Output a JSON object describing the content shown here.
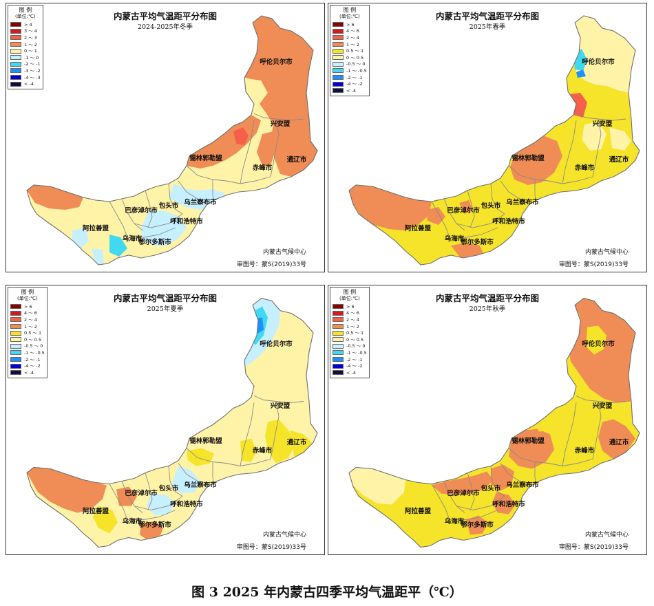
{
  "caption": "图 3   2025 年内蒙古四季平均气温距平（℃）",
  "colors": {
    "border": "#8a8a8a",
    "land_base": "#fff3a8"
  },
  "panels": [
    {
      "id": "winter",
      "title": "内蒙古平均气温距平分布图",
      "subtitle": "2024-2025年冬季",
      "org": "内蒙古气候中心",
      "approval": "审图号：蒙S(2019)33号",
      "legend": {
        "title": "图 例",
        "unit": "(单位:℃)",
        "items": [
          {
            "label": "> 4",
            "color": "#8b0000"
          },
          {
            "label": "3 ～ 4",
            "color": "#d7191c"
          },
          {
            "label": "2 ～ 3",
            "color": "#f4604a"
          },
          {
            "label": "1 ～ 2",
            "color": "#f08c55"
          },
          {
            "label": "0 ～ 1",
            "color": "#fff3a8"
          },
          {
            "label": "-1 ～ 0",
            "color": "#c6efff"
          },
          {
            "label": "-2 ～ -1",
            "color": "#40d9f0"
          },
          {
            "label": "-3 ～ -2",
            "color": "#1e90ff"
          },
          {
            "label": "-4 ～ -3",
            "color": "#0000d0"
          },
          {
            "label": "< -4",
            "color": "#101040"
          }
        ]
      },
      "cities": [
        "呼伦贝尔市",
        "兴安盟",
        "通辽市",
        "赤峰市",
        "锡林郭勒盟",
        "乌兰察布市",
        "包头市",
        "巴彦淖尔市",
        "呼和浩特市",
        "阿拉善盟",
        "乌海市",
        "鄂尔多斯市"
      ]
    },
    {
      "id": "spring",
      "title": "内蒙古平均气温距平分布图",
      "subtitle": "2025年春季",
      "org": "内蒙古气候中心",
      "approval": "审图号：蒙S(2019)33号",
      "legend": {
        "title": "图 例",
        "unit": "(单位:℃)",
        "items": [
          {
            "label": "> 6",
            "color": "#8b0000"
          },
          {
            "label": "4 ～ 6",
            "color": "#d7191c"
          },
          {
            "label": "2 ～ 4",
            "color": "#f4604a"
          },
          {
            "label": "1 ～ 2",
            "color": "#f08c55"
          },
          {
            "label": "0.5 ～ 1",
            "color": "#f5e42a"
          },
          {
            "label": "0 ～ 0.5",
            "color": "#fff3a8"
          },
          {
            "label": "-0.5 ～ 0",
            "color": "#c6efff"
          },
          {
            "label": "-1 ～ -0.5",
            "color": "#40d9f0"
          },
          {
            "label": "-2 ～ -1",
            "color": "#1e90ff"
          },
          {
            "label": "-4 ～ -2",
            "color": "#0000d0"
          },
          {
            "label": "< -4",
            "color": "#101040"
          }
        ]
      },
      "cities": [
        "呼伦贝尔市",
        "兴安盟",
        "通辽市",
        "赤峰市",
        "锡林郭勒盟",
        "乌兰察布市",
        "包头市",
        "巴彦淖尔市",
        "呼和浩特市",
        "阿拉善盟",
        "乌海市",
        "鄂尔多斯市"
      ]
    },
    {
      "id": "summer",
      "title": "内蒙古平均气温距平分布图",
      "subtitle": "2025年夏季",
      "org": "内蒙古气候中心",
      "approval": "审图号：蒙S(2019)33号",
      "legend": {
        "title": "图 例",
        "unit": "(单位:℃)",
        "items": [
          {
            "label": "> 6",
            "color": "#8b0000"
          },
          {
            "label": "4 ～ 6",
            "color": "#d7191c"
          },
          {
            "label": "2 ～ 4",
            "color": "#f4604a"
          },
          {
            "label": "1 ～ 2",
            "color": "#f08c55"
          },
          {
            "label": "0.5 ～ 1",
            "color": "#f5e42a"
          },
          {
            "label": "0 ～ 0.5",
            "color": "#fff3a8"
          },
          {
            "label": "-0.5 ～ 0",
            "color": "#c6efff"
          },
          {
            "label": "-1 ～ -0.5",
            "color": "#40d9f0"
          },
          {
            "label": "-2 ～ -1",
            "color": "#1e90ff"
          },
          {
            "label": "-4 ～ -2",
            "color": "#0000d0"
          },
          {
            "label": "< -4",
            "color": "#101040"
          }
        ]
      },
      "cities": [
        "呼伦贝尔市",
        "兴安盟",
        "通辽市",
        "赤峰市",
        "锡林郭勒盟",
        "乌兰察布市",
        "包头市",
        "巴彦淖尔市",
        "呼和浩特市",
        "阿拉善盟",
        "乌海市",
        "鄂尔多斯市"
      ]
    },
    {
      "id": "autumn",
      "title": "内蒙古平均气温距平分布图",
      "subtitle": "2025年秋季",
      "org": "内蒙古气候中心",
      "approval": "审图号：蒙S(2019)33号",
      "legend": {
        "title": "图 例",
        "unit": "(单位:℃)",
        "items": [
          {
            "label": "> 6",
            "color": "#8b0000"
          },
          {
            "label": "4 ～ 6",
            "color": "#d7191c"
          },
          {
            "label": "2 ～ 4",
            "color": "#f4604a"
          },
          {
            "label": "1 ～ 2",
            "color": "#f08c55"
          },
          {
            "label": "0.5 ～ 1",
            "color": "#f5e42a"
          },
          {
            "label": "0 ～ 0.5",
            "color": "#fff3a8"
          },
          {
            "label": "-0.5 ～ 0",
            "color": "#c6efff"
          },
          {
            "label": "-1 ～ -0.5",
            "color": "#40d9f0"
          },
          {
            "label": "-2 ～ -1",
            "color": "#1e90ff"
          },
          {
            "label": "-4 ～ -2",
            "color": "#0000d0"
          },
          {
            "label": "< -4",
            "color": "#101040"
          }
        ]
      },
      "cities": [
        "呼伦贝尔市",
        "兴安盟",
        "通辽市",
        "赤峰市",
        "锡林郭勒盟",
        "乌兰察布市",
        "包头市",
        "巴彦淖尔市",
        "呼和浩特市",
        "阿拉善盟",
        "乌海市",
        "鄂尔多斯市"
      ]
    }
  ]
}
